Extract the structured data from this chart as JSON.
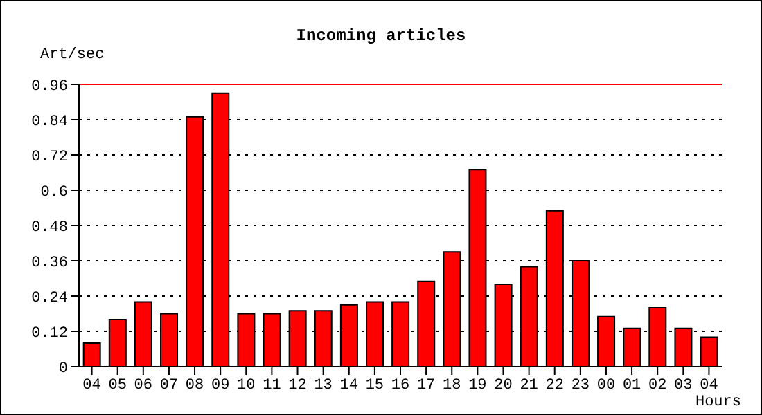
{
  "chart_data": {
    "type": "bar",
    "title": "Incoming articles",
    "ylabel": "Art/sec",
    "xlabel": "Hours",
    "categories": [
      "04",
      "05",
      "06",
      "07",
      "08",
      "09",
      "10",
      "11",
      "12",
      "13",
      "14",
      "15",
      "16",
      "17",
      "18",
      "19",
      "20",
      "21",
      "22",
      "23",
      "00",
      "01",
      "02",
      "03",
      "04"
    ],
    "values": [
      0.08,
      0.16,
      0.22,
      0.18,
      0.85,
      0.93,
      0.18,
      0.18,
      0.19,
      0.19,
      0.21,
      0.22,
      0.22,
      0.29,
      0.39,
      0.67,
      0.28,
      0.34,
      0.53,
      0.36,
      0.17,
      0.13,
      0.2,
      0.13,
      0.1
    ],
    "color": "#ff0000",
    "ylim": [
      0,
      0.96
    ],
    "yticks": [
      0,
      0.12,
      0.24,
      0.36,
      0.48,
      0.6,
      0.72,
      0.84,
      0.96
    ],
    "grid": "y",
    "ref_lines": [
      {
        "axis": "y",
        "value": 0.96,
        "color": "#ff0000"
      }
    ]
  }
}
